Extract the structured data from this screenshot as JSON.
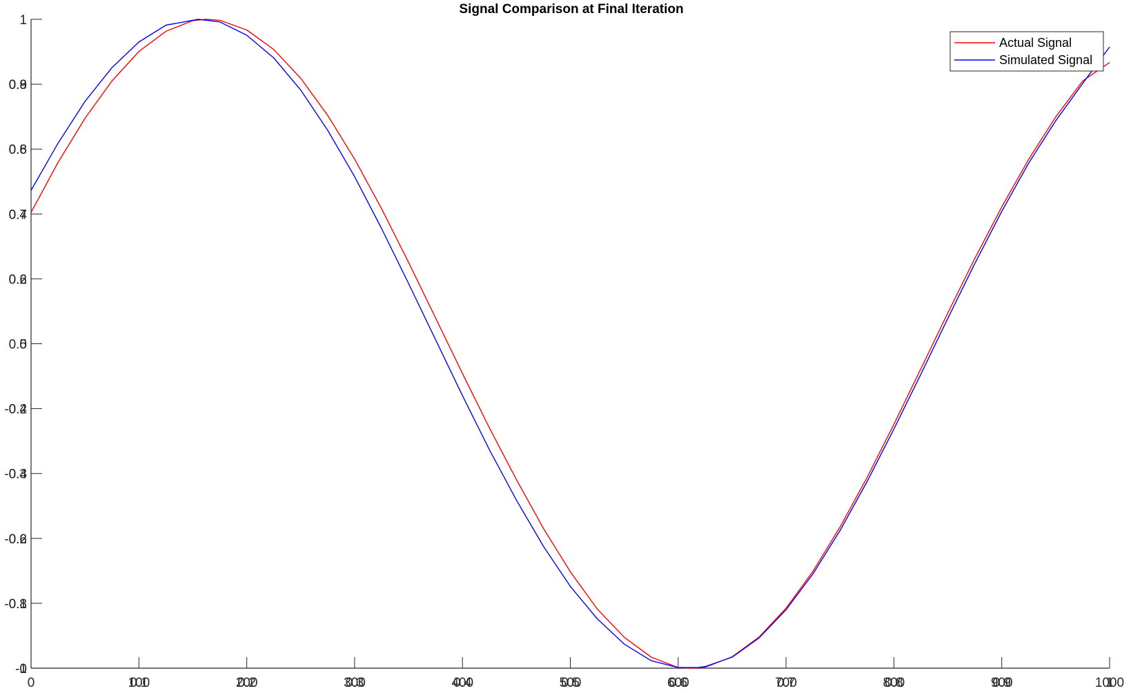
{
  "chart_data": {
    "type": "line",
    "title": "Signal Comparison at Final Iteration",
    "xlabel": "",
    "ylabel": "",
    "xlim": [
      0,
      1000
    ],
    "ylim": [
      -1,
      1
    ],
    "grid": false,
    "legend_position": "top-right",
    "colors": {
      "axis": "#262626",
      "actual": "#ff0000",
      "simulated": "#0000ff",
      "legend_border": "#262626"
    },
    "x_tick_labels": [
      {
        "value": 0,
        "labels": [
          "0"
        ]
      },
      {
        "value": 100,
        "labels": [
          "100",
          "0.1"
        ]
      },
      {
        "value": 200,
        "labels": [
          "200",
          "0.2"
        ]
      },
      {
        "value": 300,
        "labels": [
          "300",
          "0.3"
        ]
      },
      {
        "value": 400,
        "labels": [
          "400",
          "0.4"
        ]
      },
      {
        "value": 500,
        "labels": [
          "500",
          "0.5"
        ]
      },
      {
        "value": 600,
        "labels": [
          "600",
          "0.6"
        ]
      },
      {
        "value": 700,
        "labels": [
          "700",
          "0.7"
        ]
      },
      {
        "value": 800,
        "labels": [
          "800",
          "0.8"
        ]
      },
      {
        "value": 900,
        "labels": [
          "900",
          "0.9"
        ]
      },
      {
        "value": 1000,
        "labels": [
          "1000",
          "1"
        ]
      }
    ],
    "y_tick_labels": [
      {
        "value": 1,
        "labels": [
          "1"
        ]
      },
      {
        "value": 0.8,
        "labels": [
          "0.8",
          "0.9"
        ]
      },
      {
        "value": 0.6,
        "labels": [
          "0.6",
          "0.8"
        ]
      },
      {
        "value": 0.4,
        "labels": [
          "0.4",
          "0.7"
        ]
      },
      {
        "value": 0.2,
        "labels": [
          "0.2",
          "0.6"
        ]
      },
      {
        "value": 0,
        "labels": [
          "0",
          "0.5"
        ]
      },
      {
        "value": -0.2,
        "labels": [
          "-0.2",
          "0.4"
        ]
      },
      {
        "value": -0.4,
        "labels": [
          "-0.4",
          "0.3"
        ]
      },
      {
        "value": -0.6,
        "labels": [
          "-0.6",
          "0.2"
        ]
      },
      {
        "value": -0.8,
        "labels": [
          "-0.8",
          "0.1"
        ]
      },
      {
        "value": -1,
        "labels": [
          "-1",
          "0"
        ]
      }
    ],
    "series": [
      {
        "name": "Actual Signal",
        "color": "#ff0000",
        "x": [
          0,
          25,
          50,
          75,
          100,
          125,
          150,
          162,
          175,
          200,
          225,
          250,
          275,
          300,
          325,
          350,
          375,
          400,
          425,
          450,
          475,
          500,
          525,
          550,
          575,
          600,
          612,
          625,
          650,
          675,
          700,
          725,
          750,
          775,
          800,
          825,
          850,
          875,
          900,
          925,
          950,
          975,
          1000
        ],
        "y": [
          0.405,
          0.559,
          0.695,
          0.81,
          0.901,
          0.963,
          0.996,
          1.0,
          0.997,
          0.967,
          0.907,
          0.818,
          0.704,
          0.569,
          0.416,
          0.251,
          0.08,
          -0.092,
          -0.26,
          -0.419,
          -0.569,
          -0.703,
          -0.818,
          -0.905,
          -0.966,
          -0.998,
          -1.0,
          -0.997,
          -0.965,
          -0.904,
          -0.815,
          -0.701,
          -0.565,
          -0.413,
          -0.248,
          -0.077,
          0.095,
          0.263,
          0.422,
          0.569,
          0.699,
          0.81,
          0.867
        ]
      },
      {
        "name": "Simulated Signal",
        "color": "#0000ff",
        "x": [
          0,
          25,
          50,
          75,
          100,
          125,
          155,
          175,
          200,
          225,
          250,
          275,
          300,
          325,
          350,
          375,
          400,
          425,
          450,
          475,
          500,
          525,
          550,
          575,
          600,
          618,
          625,
          650,
          675,
          700,
          725,
          750,
          775,
          800,
          825,
          850,
          875,
          900,
          925,
          950,
          975,
          1000
        ],
        "y": [
          0.473,
          0.618,
          0.747,
          0.851,
          0.93,
          0.982,
          1.0,
          0.992,
          0.951,
          0.881,
          0.782,
          0.658,
          0.515,
          0.355,
          0.186,
          0.013,
          -0.16,
          -0.327,
          -0.482,
          -0.624,
          -0.748,
          -0.848,
          -0.926,
          -0.977,
          -0.998,
          -0.998,
          -0.995,
          -0.966,
          -0.907,
          -0.82,
          -0.709,
          -0.576,
          -0.426,
          -0.263,
          -0.094,
          0.078,
          0.247,
          0.408,
          0.557,
          0.687,
          0.802,
          0.915
        ]
      }
    ]
  }
}
